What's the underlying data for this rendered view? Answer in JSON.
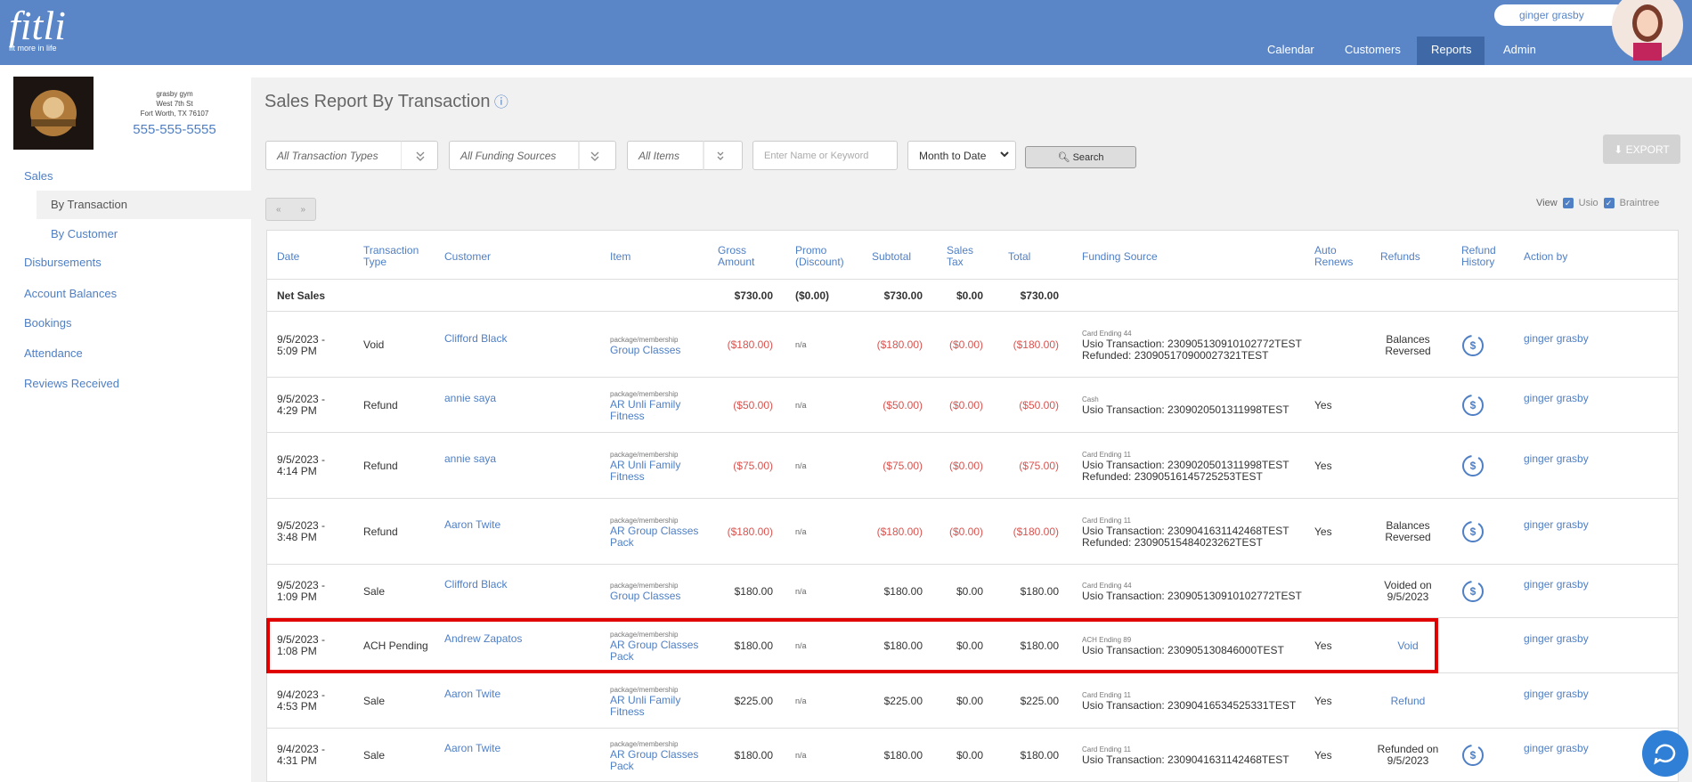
{
  "header": {
    "logo": "fitli",
    "tagline": "fit more in life",
    "user": "ginger grasby",
    "nav": [
      "Calendar",
      "Customers",
      "Reports",
      "Admin"
    ],
    "active_nav": 2
  },
  "gym": {
    "name": "grasby gym",
    "street": "West 7th St",
    "city": "Fort Worth, TX 76107",
    "phone": "555-555-5555"
  },
  "sidebar": {
    "items": [
      "Sales",
      "By Transaction",
      "By Customer",
      "Disbursements",
      "Account Balances",
      "Bookings",
      "Attendance",
      "Reviews Received"
    ],
    "sub_items": [
      1,
      2
    ],
    "active": 1
  },
  "page": {
    "title": "Sales Report By Transaction",
    "filters": {
      "transaction_types": "All Transaction Types",
      "funding_sources": "All Funding Sources",
      "items": "All Items",
      "keyword_placeholder": "Enter Name or Keyword",
      "period": "Month to Date",
      "search": "Search",
      "export": "EXPORT"
    },
    "view": {
      "label": "View",
      "options": [
        "Usio",
        "Braintree"
      ]
    }
  },
  "table": {
    "headers": [
      "Date",
      "Transaction Type",
      "Customer",
      "Item",
      "Gross Amount",
      "Promo (Discount)",
      "Subtotal",
      "Sales Tax",
      "Total",
      "Funding Source",
      "Auto Renews",
      "Refunds",
      "Refund History",
      "Action by"
    ],
    "net_sales": {
      "label": "Net Sales",
      "gross": "$730.00",
      "promo": "($0.00)",
      "subtotal": "$730.00",
      "tax": "$0.00",
      "total": "$730.00"
    },
    "rows": [
      {
        "date": "9/5/2023 - 5:09 PM",
        "type": "Void",
        "customer": "Clifford Black",
        "item_kind": "package/membership",
        "item": "Group Classes",
        "gross": "($180.00)",
        "promo": "n/a",
        "subtotal": "($180.00)",
        "tax": "($0.00)",
        "total": "($180.00)",
        "funding_label": "Card Ending 44",
        "funding": "Usio Transaction: 230905130910102772TEST Refunded: 230905170900027321TEST",
        "auto_renews": "",
        "refunds": "Balances Reversed",
        "refunds_link": false,
        "refund_history": true,
        "action_by": "ginger grasby",
        "negative": true,
        "highlight": false
      },
      {
        "date": "9/5/2023 - 4:29 PM",
        "type": "Refund",
        "customer": "annie saya",
        "item_kind": "package/membership",
        "item": "AR Unli Family Fitness",
        "gross": "($50.00)",
        "promo": "n/a",
        "subtotal": "($50.00)",
        "tax": "($0.00)",
        "total": "($50.00)",
        "funding_label": "Cash",
        "funding": "Usio Transaction: 2309020501311998TEST",
        "auto_renews": "Yes",
        "refunds": "",
        "refunds_link": false,
        "refund_history": true,
        "action_by": "ginger grasby",
        "negative": true,
        "highlight": false
      },
      {
        "date": "9/5/2023 - 4:14 PM",
        "type": "Refund",
        "customer": "annie saya",
        "item_kind": "package/membership",
        "item": "AR Unli Family Fitness",
        "gross": "($75.00)",
        "promo": "n/a",
        "subtotal": "($75.00)",
        "tax": "($0.00)",
        "total": "($75.00)",
        "funding_label": "Card Ending 11",
        "funding": "Usio Transaction: 2309020501311998TEST Refunded: 23090516145725253TEST",
        "auto_renews": "Yes",
        "refunds": "",
        "refunds_link": false,
        "refund_history": true,
        "action_by": "ginger grasby",
        "negative": true,
        "highlight": false
      },
      {
        "date": "9/5/2023 - 3:48 PM",
        "type": "Refund",
        "customer": "Aaron Twite",
        "item_kind": "package/membership",
        "item": "AR Group Classes Pack",
        "gross": "($180.00)",
        "promo": "n/a",
        "subtotal": "($180.00)",
        "tax": "($0.00)",
        "total": "($180.00)",
        "funding_label": "Card Ending 11",
        "funding": "Usio Transaction: 2309041631142468TEST Refunded: 23090515484023262TEST",
        "auto_renews": "Yes",
        "refunds": "Balances Reversed",
        "refunds_link": false,
        "refund_history": true,
        "action_by": "ginger grasby",
        "negative": true,
        "highlight": false
      },
      {
        "date": "9/5/2023 - 1:09 PM",
        "type": "Sale",
        "customer": "Clifford Black",
        "item_kind": "package/membership",
        "item": "Group Classes",
        "gross": "$180.00",
        "promo": "n/a",
        "subtotal": "$180.00",
        "tax": "$0.00",
        "total": "$180.00",
        "funding_label": "Card Ending 44",
        "funding": "Usio Transaction: 230905130910102772TEST",
        "auto_renews": "",
        "refunds": "Voided on 9/5/2023",
        "refunds_link": false,
        "refund_history": true,
        "action_by": "ginger grasby",
        "negative": false,
        "highlight": false
      },
      {
        "date": "9/5/2023 - 1:08 PM",
        "type": "ACH Pending",
        "customer": "Andrew Zapatos",
        "item_kind": "package/membership",
        "item": "AR Group Classes Pack",
        "gross": "$180.00",
        "promo": "n/a",
        "subtotal": "$180.00",
        "tax": "$0.00",
        "total": "$180.00",
        "funding_label": "ACH Ending 89",
        "funding": "Usio Transaction: 230905130846000TEST",
        "auto_renews": "Yes",
        "refunds": "Void",
        "refunds_link": true,
        "refund_history": false,
        "action_by": "ginger grasby",
        "negative": false,
        "highlight": true
      },
      {
        "date": "9/4/2023 - 4:53 PM",
        "type": "Sale",
        "customer": "Aaron Twite",
        "item_kind": "package/membership",
        "item": "AR Unli Family Fitness",
        "gross": "$225.00",
        "promo": "n/a",
        "subtotal": "$225.00",
        "tax": "$0.00",
        "total": "$225.00",
        "funding_label": "Card Ending 11",
        "funding": "Usio Transaction: 23090416534525331TEST",
        "auto_renews": "Yes",
        "refunds": "Refund",
        "refunds_link": true,
        "refund_history": false,
        "action_by": "ginger grasby",
        "negative": false,
        "highlight": false
      },
      {
        "date": "9/4/2023 - 4:31 PM",
        "type": "Sale",
        "customer": "Aaron Twite",
        "item_kind": "package/membership",
        "item": "AR Group Classes Pack",
        "gross": "$180.00",
        "promo": "n/a",
        "subtotal": "$180.00",
        "tax": "$0.00",
        "total": "$180.00",
        "funding_label": "Card Ending 11",
        "funding": "Usio Transaction: 2309041631142468TEST",
        "auto_renews": "Yes",
        "refunds": "Refunded on 9/5/2023",
        "refunds_link": false,
        "refund_history": true,
        "action_by": "ginger grasby",
        "negative": false,
        "highlight": false
      }
    ]
  }
}
